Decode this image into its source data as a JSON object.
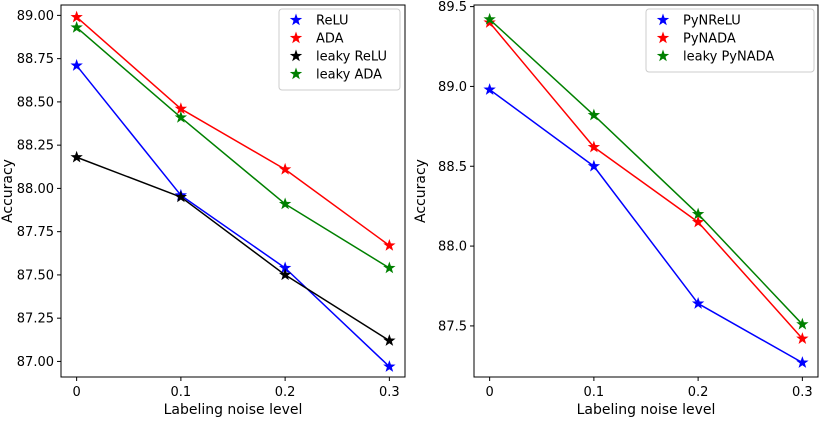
{
  "chart_data": [
    {
      "type": "line",
      "title": "",
      "xlabel": "Labeling noise level",
      "ylabel": "Accuracy",
      "x": [
        0,
        0.1,
        0.2,
        0.3
      ],
      "x_tick_labels": [
        "0",
        "0.1",
        "0.2",
        "0.3"
      ],
      "y_ticks": [
        87.0,
        87.25,
        87.5,
        87.75,
        88.0,
        88.25,
        88.5,
        88.75,
        89.0
      ],
      "y_tick_labels": [
        "87.00",
        "87.25",
        "87.50",
        "87.75",
        "88.00",
        "88.25",
        "88.50",
        "88.75",
        "89.00"
      ],
      "xlim": [
        -0.015,
        0.315
      ],
      "ylim": [
        86.91,
        89.06
      ],
      "legend_position": "top-right",
      "series": [
        {
          "name": "ReLU",
          "color": "#0000ff",
          "values": [
            88.71,
            87.96,
            87.54,
            86.97
          ]
        },
        {
          "name": "ADA",
          "color": "#ff0000",
          "values": [
            88.99,
            88.46,
            88.11,
            87.67
          ]
        },
        {
          "name": "leaky ReLU",
          "color": "#000000",
          "values": [
            88.18,
            87.95,
            87.5,
            87.12
          ]
        },
        {
          "name": "leaky ADA",
          "color": "#008000",
          "values": [
            88.93,
            88.41,
            87.91,
            87.54
          ]
        }
      ]
    },
    {
      "type": "line",
      "title": "",
      "xlabel": "Labeling noise level",
      "ylabel": "Accuracy",
      "x": [
        0,
        0.1,
        0.2,
        0.3
      ],
      "x_tick_labels": [
        "0",
        "0.1",
        "0.2",
        "0.3"
      ],
      "y_ticks": [
        87.5,
        88.0,
        88.5,
        89.0,
        89.5
      ],
      "y_tick_labels": [
        "87.5",
        "88.0",
        "88.5",
        "89.0",
        "89.5"
      ],
      "xlim": [
        -0.015,
        0.315
      ],
      "ylim": [
        87.18,
        89.51
      ],
      "legend_position": "top-right",
      "series": [
        {
          "name": "PyNReLU",
          "color": "#0000ff",
          "values": [
            88.98,
            88.5,
            87.64,
            87.27
          ]
        },
        {
          "name": "PyNADA",
          "color": "#ff0000",
          "values": [
            89.4,
            88.62,
            88.15,
            87.42
          ]
        },
        {
          "name": "leaky PyNADA",
          "color": "#008000",
          "values": [
            89.42,
            88.82,
            88.2,
            87.51
          ]
        }
      ]
    }
  ]
}
